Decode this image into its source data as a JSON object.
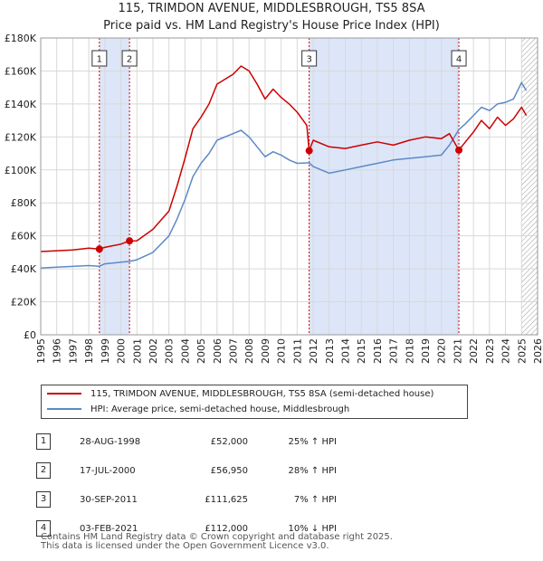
{
  "title_line1": "115, TRIMDON AVENUE, MIDDLESBROUGH, TS5 8SA",
  "title_line2": "Price paid vs. HM Land Registry's House Price Index (HPI)",
  "colors": {
    "property": "#cc0000",
    "hpi": "#5b8ac6",
    "shade": "#dde6f8",
    "vline": "#cc0000",
    "grid": "#d8d8d8"
  },
  "legend": {
    "property_label": "115, TRIMDON AVENUE, MIDDLESBROUGH, TS5 8SA (semi-detached house)",
    "hpi_label": "HPI: Average price, semi-detached house, Middlesbrough"
  },
  "transactions": [
    {
      "num": "1",
      "date": "28-AUG-1998",
      "price": "£52,000",
      "hpi": "25% ↑ HPI"
    },
    {
      "num": "2",
      "date": "17-JUL-2000",
      "price": "£56,950",
      "hpi": "28% ↑ HPI"
    },
    {
      "num": "3",
      "date": "30-SEP-2011",
      "price": "£111,625",
      "hpi": "7% ↑ HPI"
    },
    {
      "num": "4",
      "date": "03-FEB-2021",
      "price": "£112,000",
      "hpi": "10% ↓ HPI"
    }
  ],
  "footer_line1": "Contains HM Land Registry data © Crown copyright and database right 2025.",
  "footer_line2": "This data is licensed under the Open Government Licence v3.0.",
  "chart_data": {
    "type": "line",
    "title": "115, TRIMDON AVENUE, MIDDLESBROUGH, TS5 8SA — Price paid vs. HM Land Registry's House Price Index (HPI)",
    "xlabel": "",
    "ylabel": "",
    "xlim": [
      1995,
      2026
    ],
    "ylim": [
      0,
      180000
    ],
    "y_ticks": [
      0,
      20000,
      40000,
      60000,
      80000,
      100000,
      120000,
      140000,
      160000,
      180000
    ],
    "y_tick_labels": [
      "£0",
      "£20K",
      "£40K",
      "£60K",
      "£80K",
      "£100K",
      "£120K",
      "£140K",
      "£160K",
      "£180K"
    ],
    "x_ticks": [
      1995,
      1996,
      1997,
      1998,
      1999,
      2000,
      2001,
      2002,
      2003,
      2004,
      2005,
      2006,
      2007,
      2008,
      2009,
      2010,
      2011,
      2012,
      2013,
      2014,
      2015,
      2016,
      2017,
      2018,
      2019,
      2020,
      2021,
      2022,
      2023,
      2024,
      2025,
      2026
    ],
    "grid": true,
    "shaded_ranges": [
      [
        1998.66,
        2000.54
      ],
      [
        2011.75,
        2021.09
      ]
    ],
    "hatched_from": 2025.0,
    "sales": [
      {
        "label": "1",
        "x": 1998.66,
        "y": 52000
      },
      {
        "label": "2",
        "x": 2000.54,
        "y": 56950
      },
      {
        "label": "3",
        "x": 2011.75,
        "y": 111625
      },
      {
        "label": "4",
        "x": 2021.09,
        "y": 112000
      }
    ],
    "series": [
      {
        "name": "115, TRIMDON AVENUE, MIDDLESBROUGH, TS5 8SA (semi-detached house)",
        "x": [
          1995,
          1996,
          1997,
          1998,
          1998.66,
          1999,
          2000,
          2000.54,
          2001,
          2002,
          2003,
          2003.5,
          2004,
          2004.5,
          2005,
          2005.5,
          2006,
          2007,
          2007.5,
          2008,
          2008.5,
          2009,
          2009.5,
          2010,
          2010.5,
          2011,
          2011.6,
          2011.75,
          2012,
          2013,
          2014,
          2015,
          2016,
          2017,
          2018,
          2019,
          2020,
          2020.5,
          2021.09,
          2021.5,
          2022,
          2022.5,
          2023,
          2023.5,
          2024,
          2024.5,
          2025,
          2025.3
        ],
        "values": [
          50500,
          51000,
          51500,
          52500,
          52000,
          53000,
          55000,
          56950,
          57000,
          64000,
          75000,
          90000,
          107000,
          125000,
          132000,
          140000,
          152000,
          158000,
          163000,
          160000,
          152000,
          143000,
          149000,
          144000,
          140000,
          135000,
          127000,
          111625,
          118000,
          114000,
          113000,
          115000,
          117000,
          115000,
          118000,
          120000,
          119000,
          122000,
          112000,
          117000,
          123000,
          130000,
          125000,
          132000,
          127000,
          131000,
          138000,
          133000
        ]
      },
      {
        "name": "HPI: Average price, semi-detached house, Middlesbrough",
        "x": [
          1995,
          1996,
          1997,
          1998,
          1998.66,
          1999,
          2000,
          2000.54,
          2001,
          2002,
          2003,
          2003.5,
          2004,
          2004.5,
          2005,
          2005.5,
          2006,
          2007,
          2007.5,
          2008,
          2008.5,
          2009,
          2009.5,
          2010,
          2010.5,
          2011,
          2011.75,
          2012,
          2013,
          2014,
          2015,
          2016,
          2017,
          2018,
          2019,
          2020,
          2020.5,
          2021.09,
          2021.5,
          2022,
          2022.5,
          2023,
          2023.5,
          2024,
          2024.5,
          2025,
          2025.3
        ],
        "values": [
          40500,
          41000,
          41500,
          42000,
          41600,
          43000,
          44000,
          44500,
          45500,
          50000,
          60000,
          70000,
          82000,
          96000,
          104000,
          110000,
          118000,
          122000,
          124000,
          120000,
          114000,
          108000,
          111000,
          109000,
          106000,
          104000,
          104300,
          102000,
          98000,
          100000,
          102000,
          104000,
          106000,
          107000,
          108000,
          109000,
          115000,
          124400,
          128000,
          133000,
          138000,
          136000,
          140000,
          141000,
          143000,
          153000,
          148000
        ]
      }
    ]
  }
}
